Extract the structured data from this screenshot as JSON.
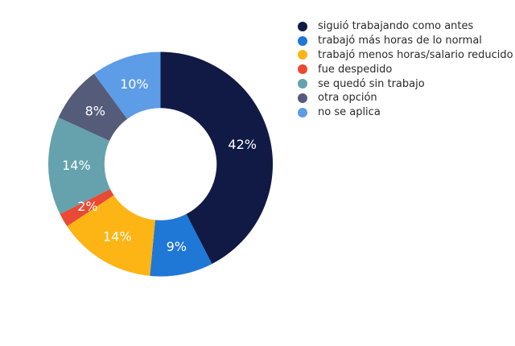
{
  "chart_data": {
    "type": "pie",
    "hole": 0.5,
    "direction": "clockwise",
    "start_angle": 90,
    "categories": [
      "siguió trabajando como  antes",
      "trabajó más horas de lo normal",
      "trabajó menos horas/salario reducido",
      "fue despedido",
      "se quedó sin trabajo",
      "otra opción",
      "no se aplica"
    ],
    "values": [
      42,
      9,
      14,
      2,
      14,
      8,
      10
    ],
    "labels_text": [
      "42%",
      "9%",
      "14%",
      "2%",
      "14%",
      "8%",
      "10%"
    ],
    "colors": [
      "#111a45",
      "#1f77d6",
      "#fdb515",
      "#e84a35",
      "#65a2ae",
      "#545c7a",
      "#5d9ce6"
    ],
    "title": "",
    "legend_position": "right-top"
  },
  "legend": {
    "items": [
      {
        "label": "siguió trabajando como  antes",
        "color": "#111a45"
      },
      {
        "label": "trabajó más horas de lo normal",
        "color": "#1f77d6"
      },
      {
        "label": "trabajó menos horas/salario reducido",
        "color": "#fdb515"
      },
      {
        "label": "fue despedido",
        "color": "#e84a35"
      },
      {
        "label": "se quedó sin trabajo",
        "color": "#65a2ae"
      },
      {
        "label": "otra opción",
        "color": "#545c7a"
      },
      {
        "label": "no se aplica",
        "color": "#5d9ce6"
      }
    ]
  }
}
